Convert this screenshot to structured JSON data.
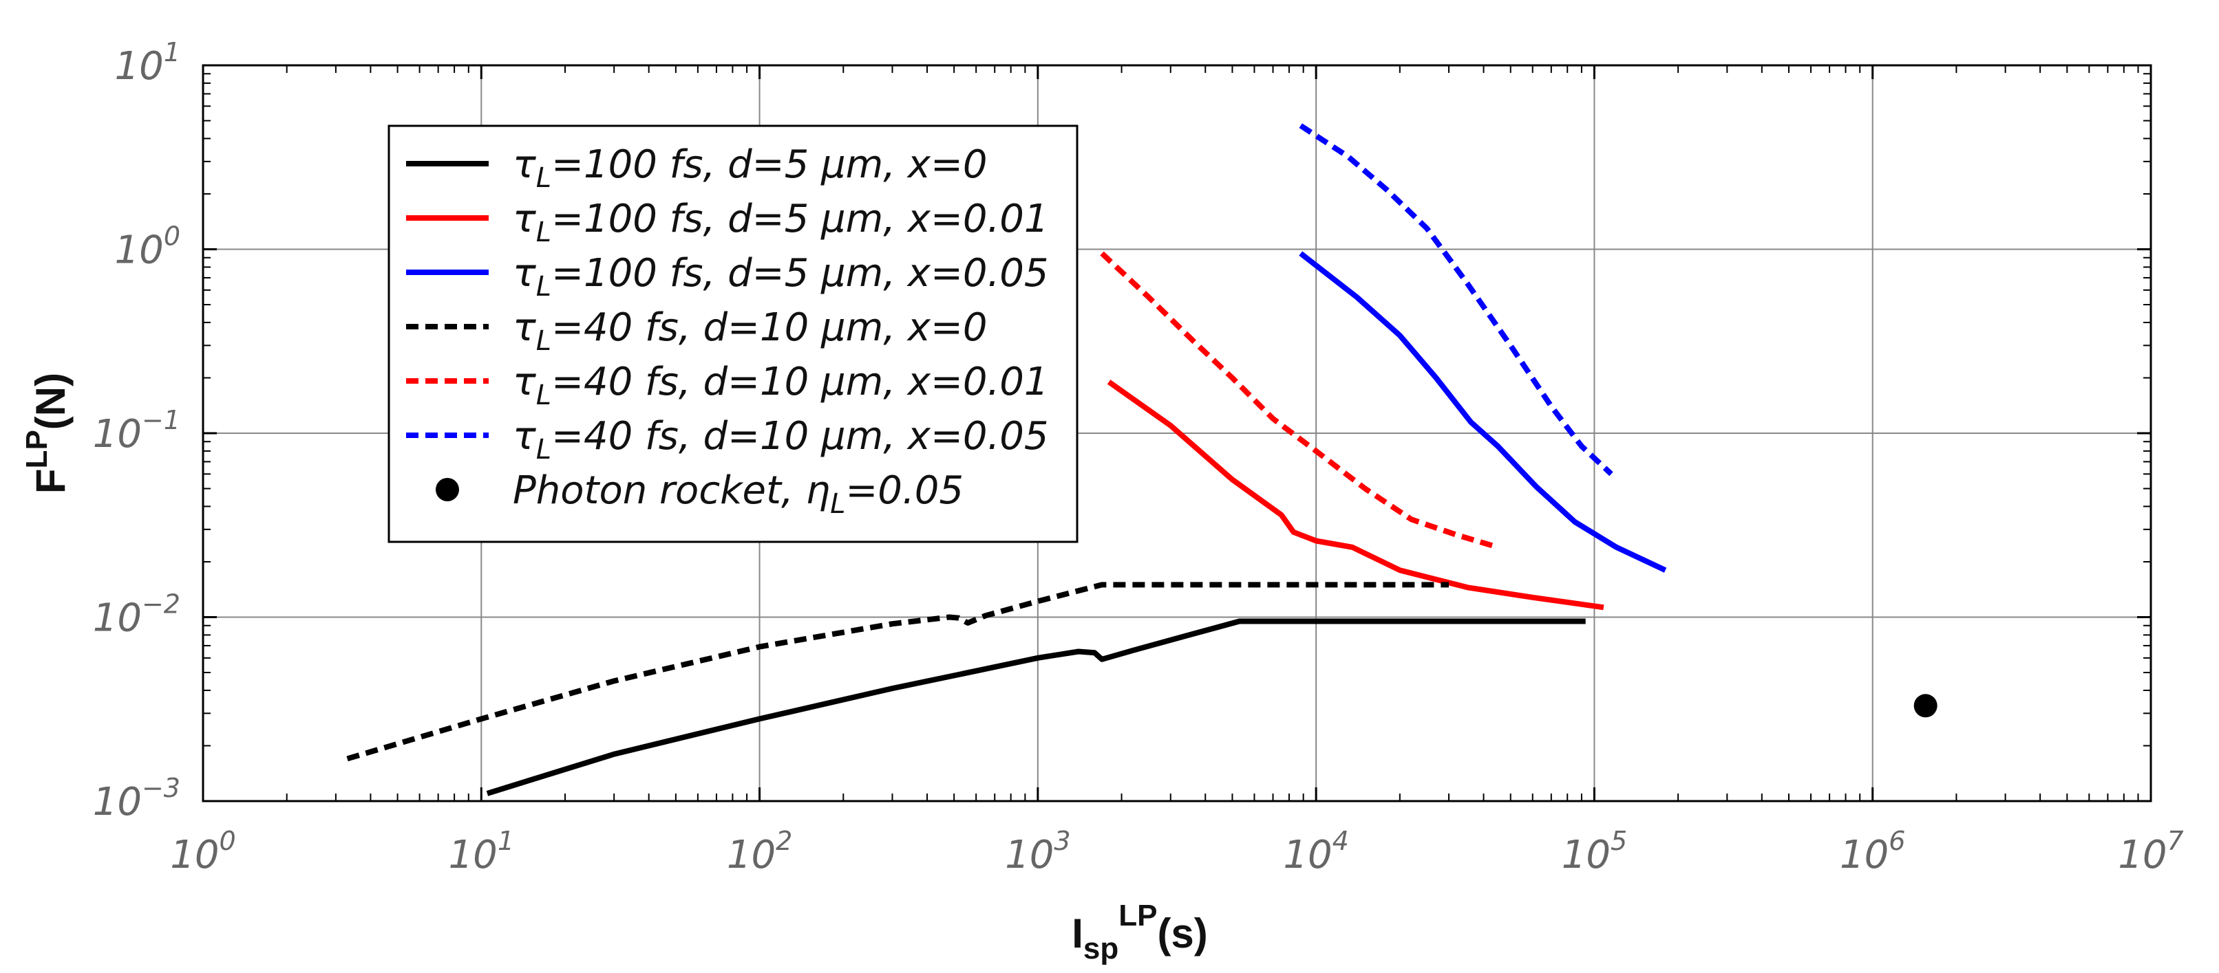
{
  "chart_data": {
    "type": "line",
    "title": "",
    "xscale": "log",
    "yscale": "log",
    "xlim": [
      1,
      10000000
    ],
    "ylim": [
      0.001,
      10
    ],
    "grid": true,
    "legend_placement": "upper-left",
    "xlabel": {
      "main": "I",
      "sub": "sp",
      "sup": "LP",
      "unit": "(s)"
    },
    "ylabel": {
      "main": "F",
      "sup": "LP",
      "unit": "(N)"
    },
    "x_ticks": [
      {
        "base": "10",
        "exp": "0",
        "value": 1
      },
      {
        "base": "10",
        "exp": "1",
        "value": 10
      },
      {
        "base": "10",
        "exp": "2",
        "value": 100
      },
      {
        "base": "10",
        "exp": "3",
        "value": 1000
      },
      {
        "base": "10",
        "exp": "4",
        "value": 10000
      },
      {
        "base": "10",
        "exp": "5",
        "value": 100000
      },
      {
        "base": "10",
        "exp": "6",
        "value": 1000000
      },
      {
        "base": "10",
        "exp": "7",
        "value": 10000000
      }
    ],
    "y_ticks": [
      {
        "base": "10",
        "exp": "−3",
        "value": 0.001
      },
      {
        "base": "10",
        "exp": "−2",
        "value": 0.01
      },
      {
        "base": "10",
        "exp": "−1",
        "value": 0.1
      },
      {
        "base": "10",
        "exp": "0",
        "value": 1
      },
      {
        "base": "10",
        "exp": "1",
        "value": 10
      }
    ],
    "series": [
      {
        "id": "tau100-d5-x0",
        "label": {
          "sym": "τ",
          "sub": "L",
          "rest": "=100 fs, d=5 μm, x=0"
        },
        "color": "#000000",
        "dash": "solid",
        "x": [
          10.5,
          30,
          100,
          300,
          600,
          1000,
          1400,
          1600,
          1700,
          2200,
          3500,
          5300,
          10000,
          30000,
          60000,
          93000
        ],
        "y": [
          0.0011,
          0.0018,
          0.0028,
          0.0041,
          0.0051,
          0.006,
          0.0065,
          0.0064,
          0.0059,
          0.0066,
          0.008,
          0.0095,
          0.0095,
          0.0095,
          0.0095,
          0.0095
        ]
      },
      {
        "id": "tau100-d5-x0.01",
        "label": {
          "sym": "τ",
          "sub": "L",
          "rest": "=100 fs, d=5 μm, x=0.01"
        },
        "color": "#ff0000",
        "dash": "solid",
        "x": [
          1800,
          3000,
          5000,
          7500,
          8300,
          10000,
          13500,
          20000,
          35000,
          60000,
          108000
        ],
        "y": [
          0.19,
          0.11,
          0.056,
          0.036,
          0.029,
          0.026,
          0.024,
          0.018,
          0.0145,
          0.0128,
          0.0113
        ]
      },
      {
        "id": "tau100-d5-x0.05",
        "label": {
          "sym": "τ",
          "sub": "L",
          "rest": "=100 fs, d=5 μm, x=0.05"
        },
        "color": "#0000ff",
        "dash": "solid",
        "x": [
          8800,
          14000,
          20000,
          27000,
          36000,
          45000,
          62000,
          85000,
          120000,
          180000
        ],
        "y": [
          0.95,
          0.55,
          0.34,
          0.2,
          0.115,
          0.085,
          0.051,
          0.033,
          0.024,
          0.018
        ]
      },
      {
        "id": "tau40-d10-x0",
        "label": {
          "sym": "τ",
          "sub": "L",
          "rest": "=40 fs, d=10 μm, x=0"
        },
        "color": "#000000",
        "dash": "dashed",
        "x": [
          3.3,
          10,
          30,
          100,
          300,
          480,
          520,
          560,
          650,
          1000,
          1700,
          3000,
          10000,
          30000
        ],
        "y": [
          0.0017,
          0.0028,
          0.0045,
          0.0069,
          0.0092,
          0.01,
          0.0099,
          0.0093,
          0.0102,
          0.0122,
          0.015,
          0.015,
          0.015,
          0.015
        ]
      },
      {
        "id": "tau40-d10-x0.01",
        "label": {
          "sym": "τ",
          "sub": "L",
          "rest": "=40 fs, d=10 μm, x=0.01"
        },
        "color": "#ff0000",
        "dash": "dashed",
        "x": [
          1700,
          2500,
          3600,
          5000,
          7000,
          10000,
          15000,
          22000,
          32000,
          45000
        ],
        "y": [
          0.95,
          0.55,
          0.32,
          0.2,
          0.12,
          0.08,
          0.05,
          0.034,
          0.028,
          0.024
        ]
      },
      {
        "id": "tau40-d10-x0.05",
        "label": {
          "sym": "τ",
          "sub": "L",
          "rest": "=40 fs, d=10 μm, x=0.05"
        },
        "color": "#0000ff",
        "dash": "dashed",
        "x": [
          8800,
          13000,
          18000,
          25000,
          35000,
          50000,
          70000,
          90000,
          115000
        ],
        "y": [
          4.7,
          3.2,
          2.1,
          1.3,
          0.65,
          0.3,
          0.14,
          0.085,
          0.06
        ]
      }
    ],
    "points": [
      {
        "id": "photon-rocket",
        "label": {
          "main": "Photon rocket, ",
          "sym": "η",
          "sub": "L",
          "rest": "=0.05"
        },
        "color": "#000000",
        "x": 1550000,
        "y": 0.0033
      }
    ]
  }
}
